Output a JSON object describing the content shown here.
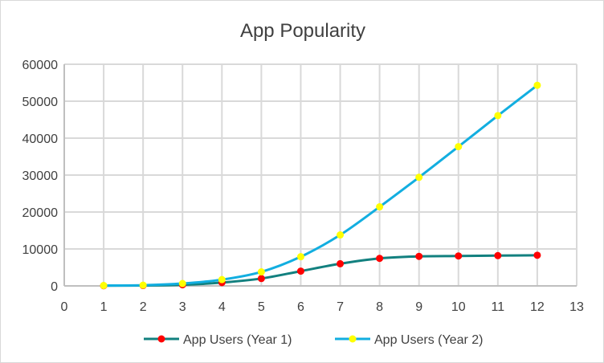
{
  "chart_data": {
    "type": "line",
    "title": "App Popularity",
    "xlabel": "",
    "ylabel": "",
    "xlim": [
      0,
      13
    ],
    "ylim": [
      0,
      60000
    ],
    "x_ticks": [
      0,
      1,
      2,
      3,
      4,
      5,
      6,
      7,
      8,
      9,
      10,
      11,
      12,
      13
    ],
    "y_ticks": [
      0,
      10000,
      20000,
      30000,
      40000,
      50000,
      60000
    ],
    "grid": true,
    "legend_position": "bottom",
    "x": [
      1,
      2,
      3,
      4,
      5,
      6,
      7,
      8,
      9,
      10,
      11,
      12
    ],
    "series": [
      {
        "name": "App Users (Year 1)",
        "line_color": "#12807f",
        "marker_color": "#ff0000",
        "values": [
          50,
          100,
          300,
          900,
          2000,
          4000,
          6000,
          7450,
          8000,
          8100,
          8200,
          8300
        ]
      },
      {
        "name": "App Users (Year 2)",
        "line_color": "#12aee0",
        "marker_color": "#ffff00",
        "values": [
          100,
          200,
          650,
          1700,
          3800,
          7900,
          13800,
          21400,
          29400,
          37700,
          46100,
          54300
        ]
      }
    ]
  }
}
